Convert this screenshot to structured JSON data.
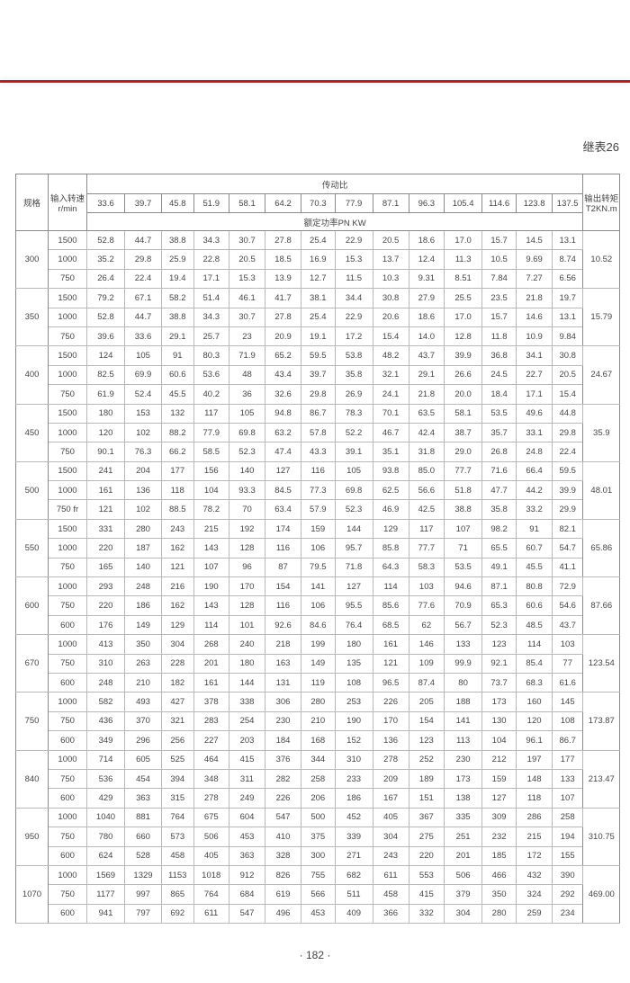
{
  "caption": "继表26",
  "header": {
    "spec": "规格",
    "speed_line1": "输入转速",
    "speed_line2": "r/min",
    "ratio_title": "传动比",
    "power_title": "额定功率PN KW",
    "torque_line1": "输出转矩",
    "torque_line2": "T2KN.m",
    "ratios": [
      "33.6",
      "39.7",
      "45.8",
      "51.9",
      "58.1",
      "64.2",
      "70.3",
      "77.9",
      "87.1",
      "96.3",
      "105.4",
      "114.6",
      "123.8",
      "137.5"
    ]
  },
  "groups": [
    {
      "spec": "300",
      "torque": "10.52",
      "rows": [
        {
          "speed": "1500",
          "values": [
            "52.8",
            "44.7",
            "38.8",
            "34.3",
            "30.7",
            "27.8",
            "25.4",
            "22.9",
            "20.5",
            "18.6",
            "17.0",
            "15.7",
            "14.5",
            "13.1"
          ]
        },
        {
          "speed": "1000",
          "values": [
            "35.2",
            "29.8",
            "25.9",
            "22.8",
            "20.5",
            "18.5",
            "16.9",
            "15.3",
            "13.7",
            "12.4",
            "11.3",
            "10.5",
            "9.69",
            "8.74"
          ]
        },
        {
          "speed": "750",
          "values": [
            "26.4",
            "22.4",
            "19.4",
            "17.1",
            "15.3",
            "13.9",
            "12.7",
            "11.5",
            "10.3",
            "9.31",
            "8.51",
            "7.84",
            "7.27",
            "6.56"
          ]
        }
      ]
    },
    {
      "spec": "350",
      "torque": "15.79",
      "rows": [
        {
          "speed": "1500",
          "values": [
            "79.2",
            "67.1",
            "58.2",
            "51.4",
            "46.1",
            "41.7",
            "38.1",
            "34.4",
            "30.8",
            "27.9",
            "25.5",
            "23.5",
            "21.8",
            "19.7"
          ]
        },
        {
          "speed": "1000",
          "values": [
            "52.8",
            "44.7",
            "38.8",
            "34.3",
            "30.7",
            "27.8",
            "25.4",
            "22.9",
            "20.6",
            "18.6",
            "17.0",
            "15.7",
            "14.6",
            "13.1"
          ]
        },
        {
          "speed": "750",
          "values": [
            "39.6",
            "33.6",
            "29.1",
            "25.7",
            "23",
            "20.9",
            "19.1",
            "17.2",
            "15.4",
            "14.0",
            "12.8",
            "11.8",
            "10.9",
            "9.84"
          ]
        }
      ]
    },
    {
      "spec": "400",
      "torque": "24.67",
      "rows": [
        {
          "speed": "1500",
          "values": [
            "124",
            "105",
            "91",
            "80.3",
            "71.9",
            "65.2",
            "59.5",
            "53.8",
            "48.2",
            "43.7",
            "39.9",
            "36.8",
            "34.1",
            "30.8"
          ]
        },
        {
          "speed": "1000",
          "values": [
            "82.5",
            "69.9",
            "60.6",
            "53.6",
            "48",
            "43.4",
            "39.7",
            "35.8",
            "32.1",
            "29.1",
            "26.6",
            "24.5",
            "22.7",
            "20.5"
          ]
        },
        {
          "speed": "750",
          "values": [
            "61.9",
            "52.4",
            "45.5",
            "40.2",
            "36",
            "32.6",
            "29.8",
            "26.9",
            "24.1",
            "21.8",
            "20.0",
            "18.4",
            "17.1",
            "15.4"
          ]
        }
      ]
    },
    {
      "spec": "450",
      "torque": "35.9",
      "rows": [
        {
          "speed": "1500",
          "values": [
            "180",
            "153",
            "132",
            "117",
            "105",
            "94.8",
            "86.7",
            "78.3",
            "70.1",
            "63.5",
            "58.1",
            "53.5",
            "49.6",
            "44.8"
          ]
        },
        {
          "speed": "1000",
          "values": [
            "120",
            "102",
            "88.2",
            "77.9",
            "69.8",
            "63.2",
            "57.8",
            "52.2",
            "46.7",
            "42.4",
            "38.7",
            "35.7",
            "33.1",
            "29.8"
          ]
        },
        {
          "speed": "750",
          "values": [
            "90.1",
            "76.3",
            "66.2",
            "58.5",
            "52.3",
            "47.4",
            "43.3",
            "39.1",
            "35.1",
            "31.8",
            "29.0",
            "26.8",
            "24.8",
            "22.4"
          ]
        }
      ]
    },
    {
      "spec": "500",
      "torque": "48.01",
      "rows": [
        {
          "speed": "1500",
          "values": [
            "241",
            "204",
            "177",
            "156",
            "140",
            "127",
            "116",
            "105",
            "93.8",
            "85.0",
            "77.7",
            "71.6",
            "66.4",
            "59.5"
          ]
        },
        {
          "speed": "1000",
          "values": [
            "161",
            "136",
            "118",
            "104",
            "93.3",
            "84.5",
            "77.3",
            "69.8",
            "62.5",
            "56.6",
            "51.8",
            "47.7",
            "44.2",
            "39.9"
          ]
        },
        {
          "speed": "750 fr",
          "values": [
            "121",
            "102",
            "88.5",
            "78.2",
            "70",
            "63.4",
            "57.9",
            "52.3",
            "46.9",
            "42.5",
            "38.8",
            "35.8",
            "33.2",
            "29.9"
          ]
        }
      ]
    },
    {
      "spec": "550",
      "torque": "65.86",
      "rows": [
        {
          "speed": "1500",
          "values": [
            "331",
            "280",
            "243",
            "215",
            "192",
            "174",
            "159",
            "144",
            "129",
            "117",
            "107",
            "98.2",
            "91",
            "82.1"
          ]
        },
        {
          "speed": "1000",
          "values": [
            "220",
            "187",
            "162",
            "143",
            "128",
            "116",
            "106",
            "95.7",
            "85.8",
            "77.7",
            "71",
            "65.5",
            "60.7",
            "54.7"
          ]
        },
        {
          "speed": "750",
          "values": [
            "165",
            "140",
            "121",
            "107",
            "96",
            "87",
            "79.5",
            "71.8",
            "64.3",
            "58.3",
            "53.5",
            "49.1",
            "45.5",
            "41.1"
          ]
        }
      ]
    },
    {
      "spec": "600",
      "torque": "87.66",
      "rows": [
        {
          "speed": "1000",
          "values": [
            "293",
            "248",
            "216",
            "190",
            "170",
            "154",
            "141",
            "127",
            "114",
            "103",
            "94.6",
            "87.1",
            "80.8",
            "72.9"
          ]
        },
        {
          "speed": "750",
          "values": [
            "220",
            "186",
            "162",
            "143",
            "128",
            "116",
            "106",
            "95.5",
            "85.6",
            "77.6",
            "70.9",
            "65.3",
            "60.6",
            "54.6"
          ]
        },
        {
          "speed": "600",
          "values": [
            "176",
            "149",
            "129",
            "114",
            "101",
            "92.6",
            "84.6",
            "76.4",
            "68.5",
            "62",
            "56.7",
            "52.3",
            "48.5",
            "43.7"
          ]
        }
      ]
    },
    {
      "spec": "670",
      "torque": "123.54",
      "rows": [
        {
          "speed": "1000",
          "values": [
            "413",
            "350",
            "304",
            "268",
            "240",
            "218",
            "199",
            "180",
            "161",
            "146",
            "133",
            "123",
            "114",
            "103"
          ]
        },
        {
          "speed": "750",
          "values": [
            "310",
            "263",
            "228",
            "201",
            "180",
            "163",
            "149",
            "135",
            "121",
            "109",
            "99.9",
            "92.1",
            "85.4",
            "77"
          ]
        },
        {
          "speed": "600",
          "values": [
            "248",
            "210",
            "182",
            "161",
            "144",
            "131",
            "119",
            "108",
            "96.5",
            "87.4",
            "80",
            "73.7",
            "68.3",
            "61.6"
          ]
        }
      ]
    },
    {
      "spec": "750",
      "torque": "173.87",
      "rows": [
        {
          "speed": "1000",
          "values": [
            "582",
            "493",
            "427",
            "378",
            "338",
            "306",
            "280",
            "253",
            "226",
            "205",
            "188",
            "173",
            "160",
            "145"
          ]
        },
        {
          "speed": "750",
          "values": [
            "436",
            "370",
            "321",
            "283",
            "254",
            "230",
            "210",
            "190",
            "170",
            "154",
            "141",
            "130",
            "120",
            "108"
          ]
        },
        {
          "speed": "600",
          "values": [
            "349",
            "296",
            "256",
            "227",
            "203",
            "184",
            "168",
            "152",
            "136",
            "123",
            "113",
            "104",
            "96.1",
            "86.7"
          ]
        }
      ]
    },
    {
      "spec": "840",
      "torque": "213.47",
      "rows": [
        {
          "speed": "1000",
          "values": [
            "714",
            "605",
            "525",
            "464",
            "415",
            "376",
            "344",
            "310",
            "278",
            "252",
            "230",
            "212",
            "197",
            "177"
          ]
        },
        {
          "speed": "750",
          "values": [
            "536",
            "454",
            "394",
            "348",
            "311",
            "282",
            "258",
            "233",
            "209",
            "189",
            "173",
            "159",
            "148",
            "133"
          ]
        },
        {
          "speed": "600",
          "values": [
            "429",
            "363",
            "315",
            "278",
            "249",
            "226",
            "206",
            "186",
            "167",
            "151",
            "138",
            "127",
            "118",
            "107"
          ]
        }
      ]
    },
    {
      "spec": "950",
      "torque": "310.75",
      "rows": [
        {
          "speed": "1000",
          "values": [
            "1040",
            "881",
            "764",
            "675",
            "604",
            "547",
            "500",
            "452",
            "405",
            "367",
            "335",
            "309",
            "286",
            "258"
          ]
        },
        {
          "speed": "750",
          "values": [
            "780",
            "660",
            "573",
            "506",
            "453",
            "410",
            "375",
            "339",
            "304",
            "275",
            "251",
            "232",
            "215",
            "194"
          ]
        },
        {
          "speed": "600",
          "values": [
            "624",
            "528",
            "458",
            "405",
            "363",
            "328",
            "300",
            "271",
            "243",
            "220",
            "201",
            "185",
            "172",
            "155"
          ]
        }
      ]
    },
    {
      "spec": "1070",
      "torque": "469.00",
      "rows": [
        {
          "speed": "1000",
          "values": [
            "1569",
            "1329",
            "1153",
            "1018",
            "912",
            "826",
            "755",
            "682",
            "611",
            "553",
            "506",
            "466",
            "432",
            "390"
          ]
        },
        {
          "speed": "750",
          "values": [
            "1177",
            "997",
            "865",
            "764",
            "684",
            "619",
            "566",
            "511",
            "458",
            "415",
            "379",
            "350",
            "324",
            "292"
          ]
        },
        {
          "speed": "600",
          "values": [
            "941",
            "797",
            "692",
            "611",
            "547",
            "496",
            "453",
            "409",
            "366",
            "332",
            "304",
            "280",
            "259",
            "234"
          ]
        }
      ]
    }
  ],
  "page_number": "· 182 ·",
  "colors": {
    "rule": "#c8191b",
    "text": "#454545",
    "grid": "#b9b9b9"
  }
}
